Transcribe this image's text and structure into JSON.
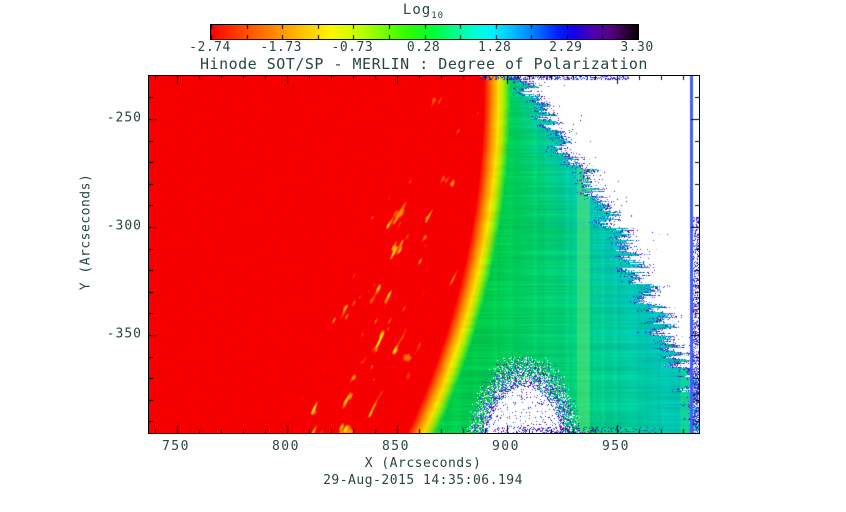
{
  "figure": {
    "background": "#ffffff",
    "text_color": "#2b4545"
  },
  "colorbar": {
    "title": "Log",
    "title_subscript": "10",
    "tick_labels": [
      "-2.74",
      "-1.73",
      "-0.73",
      "0.28",
      "1.28",
      "2.29",
      "3.30"
    ],
    "gradient_stops": [
      [
        0.0,
        "#ff0000"
      ],
      [
        0.07,
        "#ff4600"
      ],
      [
        0.14,
        "#ff8200"
      ],
      [
        0.21,
        "#ffc000"
      ],
      [
        0.28,
        "#fff600"
      ],
      [
        0.34,
        "#c8ff00"
      ],
      [
        0.4,
        "#7dff00"
      ],
      [
        0.46,
        "#2eff00"
      ],
      [
        0.52,
        "#00ff33"
      ],
      [
        0.57,
        "#00ff8c"
      ],
      [
        0.62,
        "#00ffd9"
      ],
      [
        0.66,
        "#00f2ff"
      ],
      [
        0.71,
        "#00baff"
      ],
      [
        0.76,
        "#0076ff"
      ],
      [
        0.81,
        "#0023ff"
      ],
      [
        0.85,
        "#1500e6"
      ],
      [
        0.89,
        "#4b00b4"
      ],
      [
        0.93,
        "#58008c"
      ],
      [
        0.96,
        "#3a0050"
      ],
      [
        1.0,
        "#0a0008"
      ]
    ],
    "n_ticks": 13
  },
  "chart_data": {
    "type": "heatmap",
    "title": "Hinode SOT/SP - MERLIN : Degree of Polarization",
    "xlabel": "X (Arcseconds)",
    "ylabel": "Y (Arcseconds)",
    "timestamp": "29-Aug-2015 14:35:06.194",
    "x_ticks": [
      750,
      800,
      850,
      900,
      950
    ],
    "y_ticks": [
      -250,
      -300,
      -350
    ],
    "x_minor_step": 10,
    "y_minor_step": 10,
    "xlim": [
      737.3,
      987.3
    ],
    "ylim": [
      -395.4,
      -230.1
    ],
    "grid": false,
    "legend_position": "top-colorbar",
    "colorbar_scale": {
      "label": "Log10",
      "range": [
        -2.74,
        3.3
      ],
      "ticks": [
        -2.74,
        -1.73,
        -0.73,
        0.28,
        1.28,
        2.29,
        3.3
      ]
    },
    "regions": [
      {
        "name": "solar-disk",
        "color": "#fb0500",
        "description": "saturated red on-disk region covering left ~55% of map"
      },
      {
        "name": "disk-features",
        "color": "#ffcc00",
        "description": "yellow/orange mottled fibril streaks concentrated in a diagonal band near the limb"
      },
      {
        "name": "limb-transition",
        "color": "#aaff00",
        "description": "red-orange-yellow-chartreuse-green gradient arc near x = 875 arcsec"
      },
      {
        "name": "off-limb-glow",
        "color": "#00dd77",
        "description": "green off-limb signal fading to cyan toward the outer boundary and lower right"
      },
      {
        "name": "edge-noise",
        "color": "#3344dd",
        "description": "speckled blue/purple noisy fringe where signal drops out"
      },
      {
        "name": "no-data",
        "color": "#ffffff",
        "description": "white no-data area in upper right and notch at bottom center-right"
      },
      {
        "name": "column-artifact",
        "color": "#4b5ff0",
        "description": "thin vertical blue line artifact near x = 984 arcsec plus light-green column stripes"
      }
    ]
  }
}
